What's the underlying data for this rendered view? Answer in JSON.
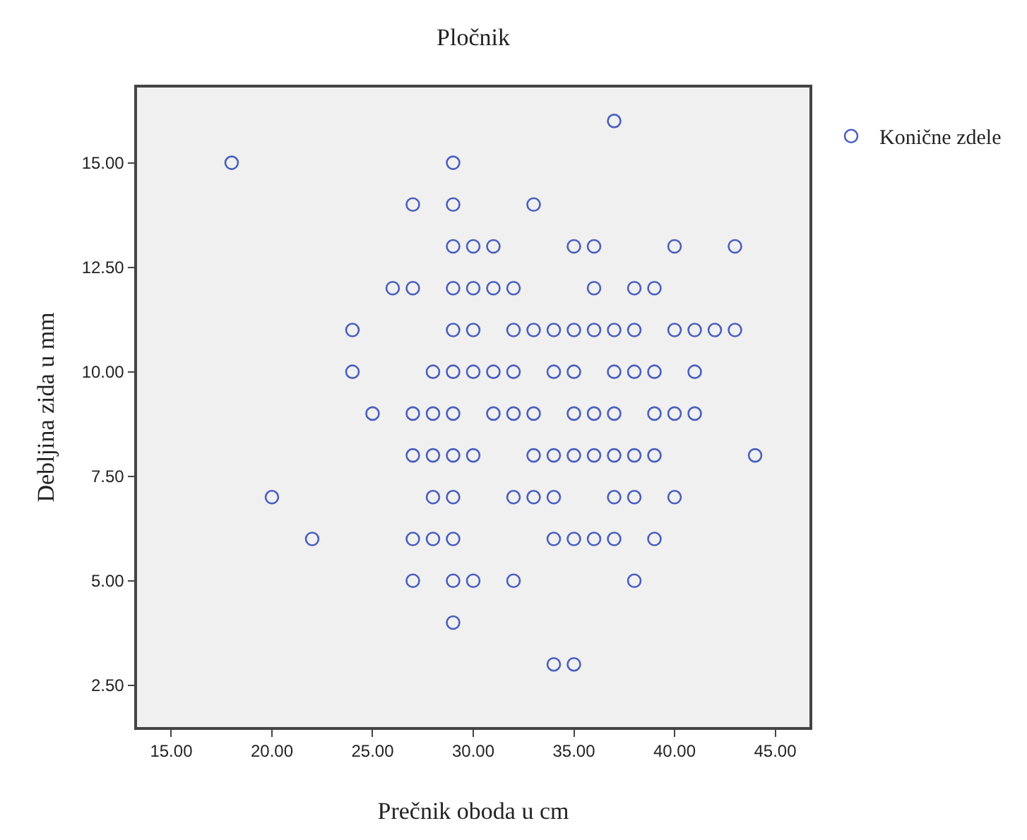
{
  "chart_data": {
    "type": "scatter",
    "title": "Pločnik",
    "xlabel": "Prečnik oboda u cm",
    "ylabel": "Debljina zida u mm",
    "xlim": [
      13.3,
      46.7
    ],
    "ylim": [
      1.5,
      16.8
    ],
    "xticks": [
      {
        "value": 15,
        "label": "15.00"
      },
      {
        "value": 20,
        "label": "20.00"
      },
      {
        "value": 25,
        "label": "25.00"
      },
      {
        "value": 30,
        "label": "30.00"
      },
      {
        "value": 35,
        "label": "35.00"
      },
      {
        "value": 40,
        "label": "40.00"
      },
      {
        "value": 45,
        "label": "45.00"
      }
    ],
    "yticks": [
      {
        "value": 2.5,
        "label": "2.50"
      },
      {
        "value": 5,
        "label": "5.00"
      },
      {
        "value": 7.5,
        "label": "7.50"
      },
      {
        "value": 10,
        "label": "10.00"
      },
      {
        "value": 12.5,
        "label": "12.50"
      },
      {
        "value": 15,
        "label": "15.00"
      }
    ],
    "grid": false,
    "legend": "top right",
    "marker": "circle",
    "series": [
      {
        "name": "Konične zdele",
        "color": "#4a5fbf",
        "x": [
          37,
          18,
          29,
          27,
          29,
          33,
          29,
          30,
          31,
          35,
          36,
          40,
          43,
          26,
          27,
          29,
          30,
          31,
          32,
          36,
          38,
          39,
          24,
          29,
          30,
          32,
          33,
          34,
          35,
          36,
          37,
          38,
          40,
          41,
          42,
          43,
          24,
          28,
          29,
          30,
          31,
          32,
          34,
          35,
          37,
          38,
          39,
          41,
          25,
          27,
          28,
          29,
          31,
          32,
          33,
          35,
          36,
          37,
          39,
          40,
          41,
          27,
          28,
          29,
          30,
          33,
          34,
          35,
          36,
          37,
          38,
          39,
          44,
          20,
          28,
          29,
          32,
          33,
          34,
          37,
          38,
          40,
          22,
          27,
          28,
          29,
          34,
          35,
          36,
          37,
          39,
          27,
          29,
          30,
          32,
          38,
          29,
          34,
          35
        ],
        "values": [
          16,
          15,
          15,
          14,
          14,
          14,
          13,
          13,
          13,
          13,
          13,
          13,
          13,
          12,
          12,
          12,
          12,
          12,
          12,
          12,
          12,
          12,
          11,
          11,
          11,
          11,
          11,
          11,
          11,
          11,
          11,
          11,
          11,
          11,
          11,
          11,
          10,
          10,
          10,
          10,
          10,
          10,
          10,
          10,
          10,
          10,
          10,
          10,
          9,
          9,
          9,
          9,
          9,
          9,
          9,
          9,
          9,
          9,
          9,
          9,
          9,
          8,
          8,
          8,
          8,
          8,
          8,
          8,
          8,
          8,
          8,
          8,
          8,
          7,
          7,
          7,
          7,
          7,
          7,
          7,
          7,
          7,
          6,
          6,
          6,
          6,
          6,
          6,
          6,
          6,
          6,
          5,
          5,
          5,
          5,
          5,
          4,
          3,
          3
        ]
      }
    ]
  }
}
